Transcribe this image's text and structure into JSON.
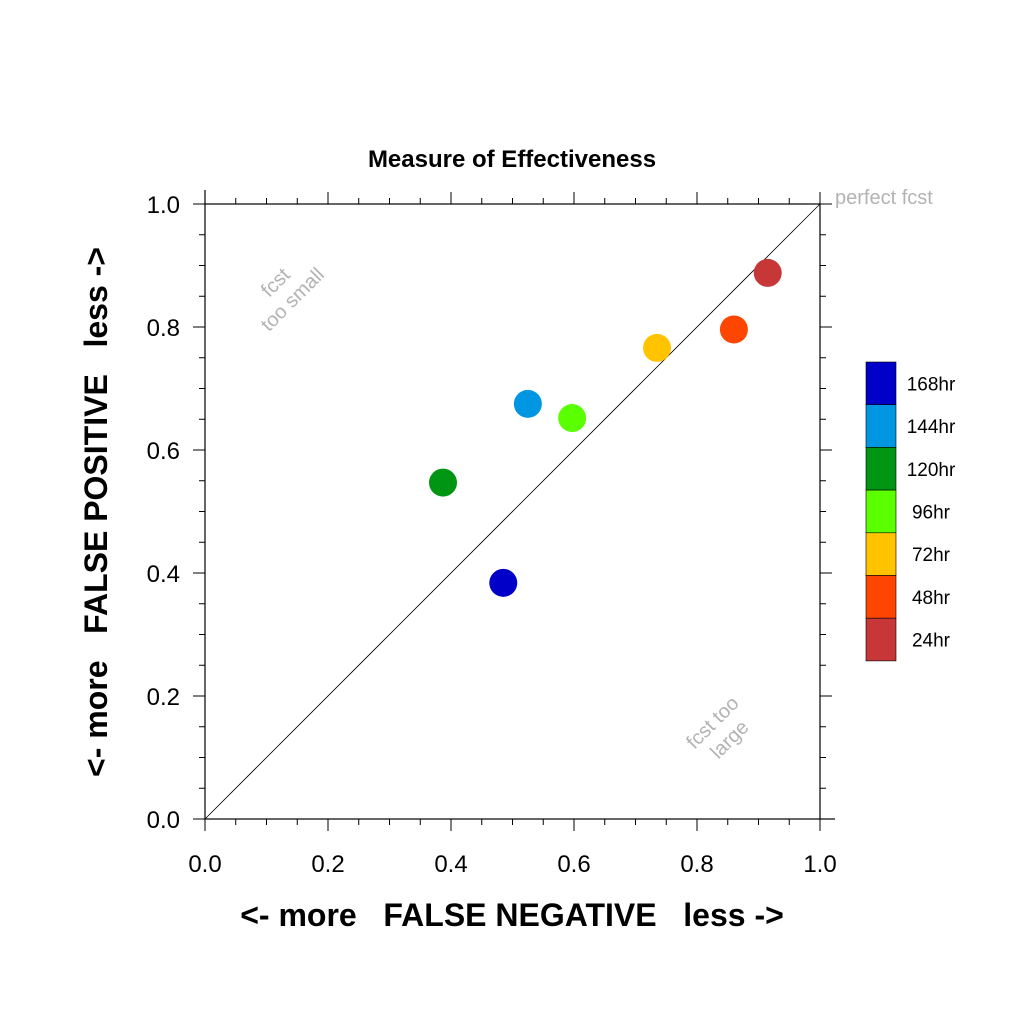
{
  "chart_data": {
    "type": "scatter",
    "title": "Measure of Effectiveness",
    "xlabel": "<- more   FALSE NEGATIVE   less ->",
    "ylabel": "<- more   FALSE POSITIVE   less ->",
    "xlim": [
      0.0,
      1.0
    ],
    "ylim": [
      0.0,
      1.0
    ],
    "x_ticks": [
      "0.0",
      "0.2",
      "0.4",
      "0.6",
      "0.8",
      "1.0"
    ],
    "y_ticks": [
      "0.0",
      "0.2",
      "0.4",
      "0.6",
      "0.8",
      "1.0"
    ],
    "grid": false,
    "legend_position": "right",
    "reference_line": {
      "from": [
        0,
        0
      ],
      "to": [
        1,
        1
      ]
    },
    "annotations": [
      {
        "id": "perfect",
        "text": "perfect fcst"
      },
      {
        "id": "small-1",
        "text": "fcst"
      },
      {
        "id": "small-2",
        "text": "too small"
      },
      {
        "id": "large-1",
        "text": "fcst too"
      },
      {
        "id": "large-2",
        "text": "large"
      }
    ],
    "series": [
      {
        "name": "168hr",
        "color": "#0000c8",
        "x": 0.485,
        "y": 0.384
      },
      {
        "name": "144hr",
        "color": "#0096e1",
        "x": 0.525,
        "y": 0.675
      },
      {
        "name": "120hr",
        "color": "#009614",
        "x": 0.387,
        "y": 0.547
      },
      {
        "name": "96hr",
        "color": "#5aff00",
        "x": 0.597,
        "y": 0.652
      },
      {
        "name": "72hr",
        "color": "#ffc300",
        "x": 0.735,
        "y": 0.766
      },
      {
        "name": "48hr",
        "color": "#ff4600",
        "x": 0.86,
        "y": 0.796
      },
      {
        "name": "24hr",
        "color": "#c83737",
        "x": 0.915,
        "y": 0.888
      }
    ]
  }
}
